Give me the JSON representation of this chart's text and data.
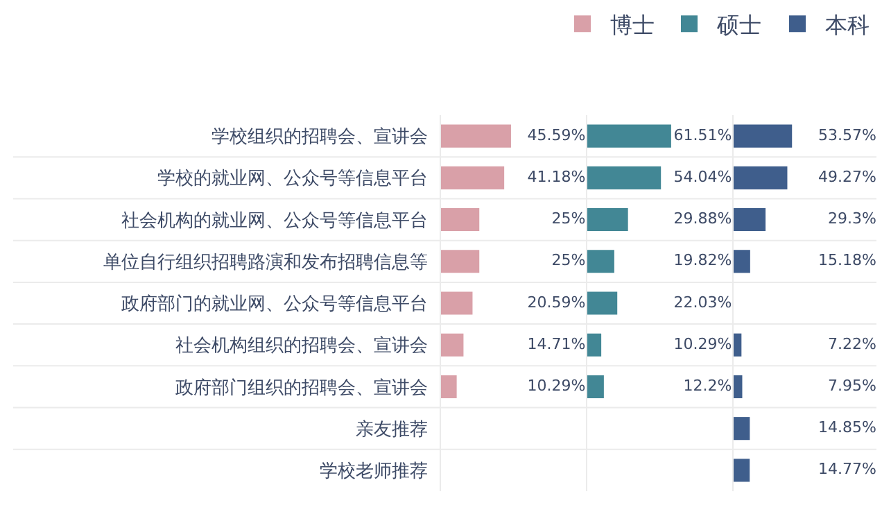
{
  "chart_data": [
    {
      "type": "bar",
      "orientation": "horizontal",
      "categories": [
        "学校组织的招聘会、宣讲会",
        "学校的就业网、公众号等信息平台",
        "社会机构的就业网、公众号等信息平台",
        "单位自行组织招聘路演和发布招聘信息等",
        "政府部门的就业网、公众号等信息平台",
        "社会机构组织的招聘会、宣讲会",
        "政府部门组织的招聘会、宣讲会",
        "亲友推荐",
        "学校老师推荐"
      ],
      "xlim": [
        0,
        94
      ],
      "tick_labels": "y",
      "grid": "y",
      "legend": "top right",
      "series": [
        {
          "name": "博士",
          "color": "#d9a0a8",
          "values": [
            45.59,
            41.18,
            25,
            25,
            20.59,
            14.71,
            10.29,
            null,
            null
          ],
          "value_labels": [
            "45.59%",
            "41.18%",
            "25%",
            "25%",
            "20.59%",
            "14.71%",
            "10.29%",
            null,
            null
          ]
        }
      ]
    },
    {
      "type": "bar",
      "orientation": "horizontal",
      "categories": [
        "学校组织的招聘会、宣讲会",
        "学校的就业网、公众号等信息平台",
        "社会机构的就业网、公众号等信息平台",
        "单位自行组织招聘路演和发布招聘信息等",
        "政府部门的就业网、公众号等信息平台",
        "社会机构组织的招聘会、宣讲会",
        "政府部门组织的招聘会、宣讲会",
        "亲友推荐",
        "学校老师推荐"
      ],
      "xlim": [
        0,
        106
      ],
      "tick_labels": false,
      "grid": "y",
      "legend": "top right",
      "series": [
        {
          "name": "硕士",
          "color": "#428795",
          "values": [
            61.51,
            54.04,
            29.88,
            19.82,
            22.03,
            10.29,
            12.2,
            null,
            null
          ],
          "value_labels": [
            "61.51%",
            "54.04%",
            "29.88%",
            "19.82%",
            "22.03%",
            "10.29%",
            "12.2%",
            null,
            null
          ]
        }
      ]
    },
    {
      "type": "bar",
      "orientation": "horizontal",
      "categories": [
        "学校组织的招聘会、宣讲会",
        "学校的就业网、公众号等信息平台",
        "社会机构的就业网、公众号等信息平台",
        "单位自行组织招聘路演和发布招聘信息等",
        "政府部门的就业网、公众号等信息平台",
        "社会机构组织的招聘会、宣讲会",
        "政府部门组织的招聘会、宣讲会",
        "亲友推荐",
        "学校老师推荐"
      ],
      "xlim": [
        0,
        131
      ],
      "tick_labels": false,
      "grid": "y",
      "legend": "top right",
      "series": [
        {
          "name": "本科",
          "color": "#3f5e8c",
          "values": [
            53.57,
            49.27,
            29.3,
            15.18,
            null,
            7.22,
            7.95,
            14.85,
            14.77
          ],
          "value_labels": [
            "53.57%",
            "49.27%",
            "29.3%",
            "15.18%",
            null,
            "7.22%",
            "7.95%",
            "14.85%",
            "14.77%"
          ]
        }
      ]
    }
  ]
}
